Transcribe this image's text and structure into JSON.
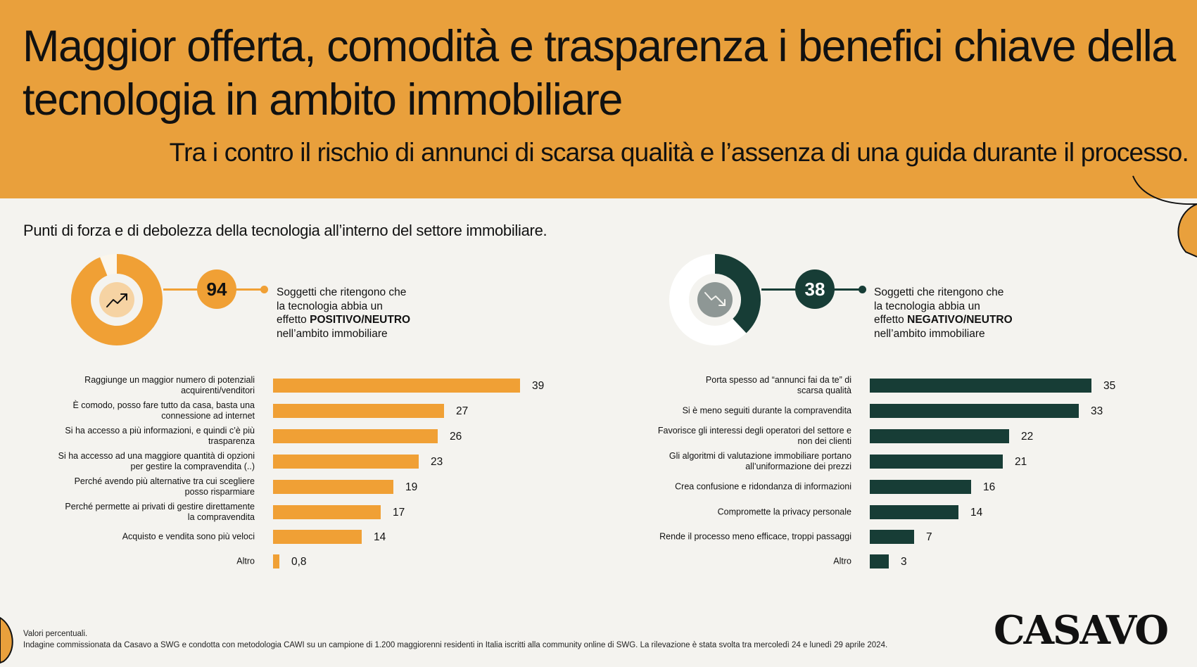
{
  "header": {
    "title": "Maggior offerta, comodità e trasparenza i benefici chiave della tecnologia in ambito immobiliare",
    "subtitle": "Tra i contro il rischio di annunci di scarsa qualità e l’assenza di una guida durante il processo."
  },
  "section_title": "Punti di forza e di debolezza della tecnologia all’interno del settore immobiliare.",
  "colors": {
    "header_bg": "#e9a03c",
    "positive": "#f0a035",
    "negative": "#173d36",
    "background": "#f4f3ef"
  },
  "positive": {
    "value": "94",
    "share": 0.94,
    "icon": "trend-up-icon",
    "desc_lines": [
      "Soggetti che ritengono che",
      "la tecnologia abbia un"
    ],
    "desc_prefix": "effetto ",
    "desc_bold": "POSITIVO/NEUTRO",
    "desc_last": "nell’ambito immobiliare"
  },
  "negative": {
    "value": "38",
    "share": 0.38,
    "icon": "trend-down-icon",
    "desc_lines": [
      "Soggetti che ritengono che",
      "la tecnologia abbia un"
    ],
    "desc_prefix": "effetto ",
    "desc_bold": "NEGATIVO/NEUTRO",
    "desc_last": "nell’ambito immobiliare"
  },
  "chart_data": [
    {
      "type": "bar",
      "orientation": "horizontal",
      "categories": [
        "Raggiunge un maggior numero di potenziali acquirenti/venditori",
        "È comodo, posso fare tutto da casa, basta una connessione ad internet",
        "Si ha accesso a più informazioni, e quindi c’è più trasparenza",
        "Si ha accesso ad una maggiore quantità di opzioni per gestire la compravendita (..)",
        "Perché avendo più alternative tra cui scegliere posso risparmiare",
        "Perché permette ai privati di gestire direttamente la compravendita",
        "Acquisto e vendita sono più veloci",
        "Altro"
      ],
      "label_lines": [
        [
          "Raggiunge un maggior numero di potenziali",
          "acquirenti/venditori"
        ],
        [
          "È comodo, posso fare tutto da casa, basta una",
          "connessione ad internet"
        ],
        [
          "Si ha accesso a più informazioni, e quindi c’è più",
          "trasparenza"
        ],
        [
          "Si ha accesso ad una maggiore quantità di opzioni",
          "per gestire la compravendita (..)"
        ],
        [
          "Perché avendo più alternative tra cui scegliere",
          "posso risparmiare"
        ],
        [
          "Perché permette ai privati di gestire direttamente",
          "la compravendita"
        ],
        [
          "Acquisto e vendita sono più veloci"
        ],
        [
          "Altro"
        ]
      ],
      "values": [
        39,
        27,
        26,
        23,
        19,
        17,
        14,
        0.8
      ],
      "value_labels": [
        "39",
        "27",
        "26",
        "23",
        "19",
        "17",
        "14",
        "0,8"
      ],
      "xlim": [
        0,
        40
      ],
      "color": "#f0a035"
    },
    {
      "type": "bar",
      "orientation": "horizontal",
      "categories": [
        "Porta spesso ad “annunci fai da te” di scarsa qualità",
        "Si è meno seguiti durante la compravendita",
        "Favorisce gli interessi degli operatori del settore e non dei clienti",
        "Gli algoritmi di valutazione immobiliare portano all’uniformazione dei prezzi",
        "Crea confusione e ridondanza di informazioni",
        "Compromette la privacy personale",
        "Rende il processo meno efficace, troppi passaggi",
        "Altro"
      ],
      "label_lines": [
        [
          "Porta spesso ad “annunci fai da te” di",
          "scarsa qualità"
        ],
        [
          "Si è meno seguiti durante la compravendita"
        ],
        [
          "Favorisce gli interessi degli operatori del settore e",
          "non dei clienti"
        ],
        [
          "Gli algoritmi di valutazione immobiliare portano",
          "all’uniformazione dei prezzi"
        ],
        [
          "Crea confusione e ridondanza di informazioni"
        ],
        [
          "Compromette la privacy personale"
        ],
        [
          "Rende il processo meno efficace, troppi passaggi"
        ],
        [
          "Altro"
        ]
      ],
      "values": [
        35,
        33,
        22,
        21,
        16,
        14,
        7,
        3
      ],
      "value_labels": [
        "35",
        "33",
        "22",
        "21",
        "16",
        "14",
        "7",
        "3"
      ],
      "xlim": [
        0,
        40
      ],
      "color": "#173d36"
    }
  ],
  "footnote": {
    "line1": "Valori percentuali.",
    "line2": "Indagine commissionata da Casavo a SWG e condotta con metodologia CAWI  su un campione di 1.200 maggiorenni residenti in Italia iscritti alla community online di SWG. La rilevazione è stata svolta tra mercoledì 24 e lunedì 29 aprile 2024."
  },
  "logo": "CASAVO"
}
